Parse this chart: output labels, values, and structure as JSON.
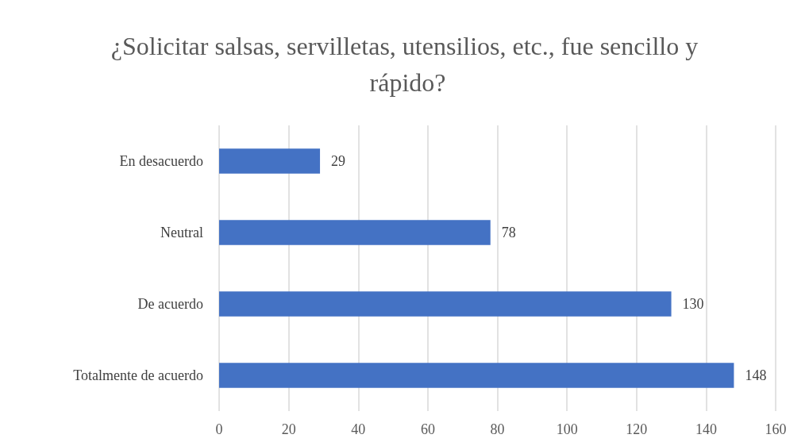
{
  "chart_data": {
    "type": "bar",
    "orientation": "horizontal",
    "title": "¿Solicitar salsas, servilletas, utensilios, etc., fue sencillo y rápido?",
    "categories": [
      "En desacuerdo",
      "Neutral",
      "De acuerdo",
      "Totalmente de acuerdo"
    ],
    "values": [
      29,
      78,
      130,
      148
    ],
    "color": "#4472c4",
    "xlim": [
      0,
      160
    ],
    "xticks": [
      0,
      20,
      40,
      60,
      80,
      100,
      120,
      140,
      160
    ],
    "grid": "x",
    "data_labels": true
  }
}
